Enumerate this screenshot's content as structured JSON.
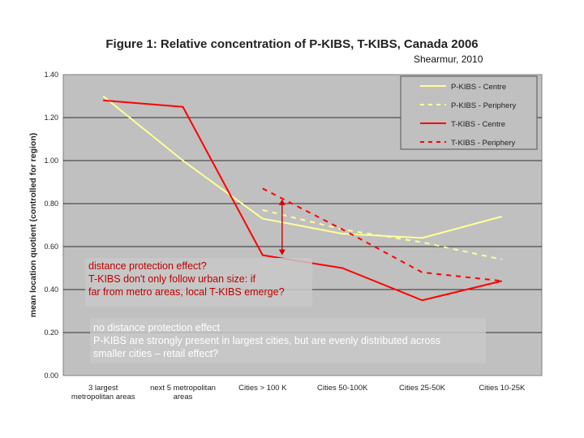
{
  "chart_data": {
    "type": "line",
    "title": "Figure 1: Relative concentration of P-KIBS, T-KIBS, Canada 2006",
    "credit": "Shearmur, 2010",
    "xlabel": "",
    "ylabel": "mean location quotient (controlled for region)",
    "ylim": [
      0,
      1.4
    ],
    "yticks": [
      "0.00",
      "0.20",
      "0.40",
      "0.60",
      "0.80",
      "1.00",
      "1.20",
      "1.40"
    ],
    "categories": [
      [
        "3 largest",
        "metropolitan areas"
      ],
      [
        "next 5 metropolitan",
        "areas"
      ],
      [
        "Cities > 100 K"
      ],
      [
        "Cities 50-100K"
      ],
      [
        "Cities 25-50K"
      ],
      [
        "Cities 10-25K"
      ]
    ],
    "series": [
      {
        "name": "P-KIBS - Centre",
        "color": "#ffff99",
        "dash": false,
        "values": [
          1.3,
          1.0,
          0.73,
          0.66,
          0.64,
          0.74
        ]
      },
      {
        "name": "P-KIBS - Periphery",
        "color": "#ffff99",
        "dash": true,
        "values": [
          null,
          null,
          0.77,
          0.68,
          0.62,
          0.54
        ]
      },
      {
        "name": "T-KIBS - Centre",
        "color": "#ff0000",
        "dash": false,
        "values": [
          1.28,
          1.25,
          0.56,
          0.5,
          0.35,
          0.44
        ]
      },
      {
        "name": "T-KIBS - Periphery",
        "color": "#ff0000",
        "dash": true,
        "values": [
          null,
          null,
          0.87,
          0.68,
          0.48,
          0.44
        ]
      }
    ],
    "annotation_arrow": {
      "category_index": 2,
      "from": 0.56,
      "to": 0.82
    }
  },
  "notes": {
    "red_box": [
      "distance protection effect?",
      "T-KIBS don't only follow urban size: if",
      "far from metro areas, local T-KIBS emerge?"
    ],
    "grey_box": [
      "no distance protection effect",
      "P-KIBS are strongly present in largest cities, but are evenly distributed across",
      "smaller cities – retail effect?"
    ]
  }
}
